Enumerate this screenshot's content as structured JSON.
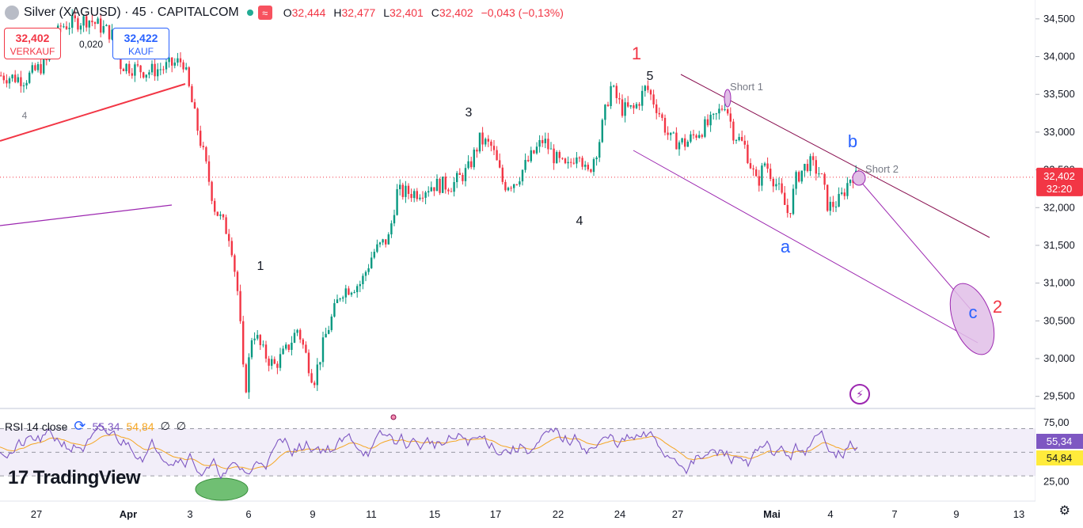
{
  "header": {
    "title": "Silver (XAGUSD) · 45 · CAPITALCOM",
    "ohlc": [
      {
        "label": "O",
        "value": "32,444"
      },
      {
        "label": "H",
        "value": "32,477"
      },
      {
        "label": "L",
        "value": "32,401"
      },
      {
        "label": "C",
        "value": "32,402"
      }
    ],
    "change": "−0,043 (−0,13%)"
  },
  "trade": {
    "sell_price": "32,402",
    "sell_label": "VERKAUF",
    "buy_price": "32,422",
    "buy_label": "KAUF",
    "spread": "0,020"
  },
  "price_scale": {
    "current_price": "32,402",
    "countdown": "32:20"
  },
  "rsi_legend": {
    "name": "RSI 14 close",
    "value_rsi": "55,34",
    "value_ma": "54,84",
    "icon_a": "∅",
    "icon_b": "∅"
  },
  "branding": {
    "logo_text": "TradingView"
  },
  "colors": {
    "up": "#089981",
    "down": "#f23645",
    "rsi": "#7e57c2",
    "rsi_ma": "#f5a623",
    "channel": "#9c27b0",
    "label_blue": "#2962ff",
    "label_red": "#f23645"
  },
  "chart_data": [
    {
      "type": "candlestick",
      "title": "Silver (XAGUSD) · 45 · CAPITALCOM",
      "y_ticks": [
        "34,500",
        "34,000",
        "33,500",
        "33,000",
        "32,500",
        "32,000",
        "31,500",
        "31,000",
        "30,500",
        "30,000",
        "29,500"
      ],
      "ylim": [
        29.35,
        34.75
      ],
      "x_ticks": [
        "27",
        "Apr",
        "3",
        "6",
        "9",
        "11",
        "15",
        "17",
        "22",
        "24",
        "27",
        "Mai",
        "4",
        "7",
        "9",
        "13"
      ],
      "path": [
        [
          0,
          33.75
        ],
        [
          30,
          33.7
        ],
        [
          60,
          33.95
        ],
        [
          75,
          34.4
        ],
        [
          110,
          34.5
        ],
        [
          140,
          34.3
        ],
        [
          150,
          33.9
        ],
        [
          185,
          33.8
        ],
        [
          205,
          33.85
        ],
        [
          230,
          33.95
        ],
        [
          245,
          33.2
        ],
        [
          258,
          32.6
        ],
        [
          270,
          32.0
        ],
        [
          290,
          31.6
        ],
        [
          300,
          30.8
        ],
        [
          308,
          29.5
        ],
        [
          318,
          30.4
        ],
        [
          330,
          30.1
        ],
        [
          345,
          29.9
        ],
        [
          360,
          30.1
        ],
        [
          375,
          30.4
        ],
        [
          395,
          29.7
        ],
        [
          410,
          30.3
        ],
        [
          430,
          30.9
        ],
        [
          455,
          31.0
        ],
        [
          470,
          31.4
        ],
        [
          490,
          31.6
        ],
        [
          500,
          32.2
        ],
        [
          525,
          32.2
        ],
        [
          545,
          32.3
        ],
        [
          570,
          32.3
        ],
        [
          590,
          32.5
        ],
        [
          605,
          32.9
        ],
        [
          620,
          32.8
        ],
        [
          635,
          32.3
        ],
        [
          650,
          32.35
        ],
        [
          665,
          32.6
        ],
        [
          685,
          32.9
        ],
        [
          700,
          32.65
        ],
        [
          715,
          32.5
        ],
        [
          730,
          32.8
        ],
        [
          740,
          32.4
        ],
        [
          755,
          32.85
        ],
        [
          770,
          33.6
        ],
        [
          785,
          33.3
        ],
        [
          800,
          33.3
        ],
        [
          815,
          33.6
        ],
        [
          830,
          33.3
        ],
        [
          845,
          32.9
        ],
        [
          865,
          32.85
        ],
        [
          880,
          33.0
        ],
        [
          900,
          33.15
        ],
        [
          915,
          33.4
        ],
        [
          925,
          33.0
        ],
        [
          940,
          32.8
        ],
        [
          955,
          32.3
        ],
        [
          965,
          32.6
        ],
        [
          980,
          32.3
        ],
        [
          995,
          31.9
        ],
        [
          1005,
          32.4
        ],
        [
          1020,
          32.6
        ],
        [
          1035,
          32.45
        ],
        [
          1045,
          32.0
        ],
        [
          1060,
          32.1
        ],
        [
          1075,
          32.45
        ],
        [
          1085,
          32.35
        ]
      ],
      "annotations": [
        {
          "text": "4",
          "color": "#787b86"
        },
        {
          "text": "1",
          "color": "#131722"
        },
        {
          "text": "3",
          "color": "#131722"
        },
        {
          "text": "4",
          "color": "#131722"
        },
        {
          "text": "5",
          "color": "#131722"
        },
        {
          "text": "1",
          "color": "#f23645"
        },
        {
          "text": "Short 1",
          "color": "#787b86"
        },
        {
          "text": "Short 2",
          "color": "#787b86"
        },
        {
          "text": "a",
          "color": "#2962ff"
        },
        {
          "text": "b",
          "color": "#2962ff"
        },
        {
          "text": "c",
          "color": "#2962ff"
        },
        {
          "text": "2",
          "color": "#f23645"
        }
      ]
    },
    {
      "type": "line",
      "title": "RSI 14 close",
      "series": [
        {
          "name": "RSI",
          "last": 55.34
        },
        {
          "name": "MA",
          "last": 54.84
        }
      ],
      "y_ticks": [
        "75,00",
        "25,00"
      ],
      "ylim": [
        10,
        85
      ],
      "bands": [
        70,
        50,
        30
      ]
    }
  ]
}
